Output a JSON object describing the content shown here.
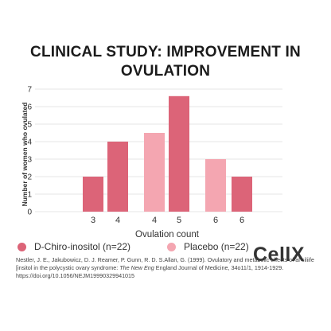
{
  "title_line1": "CLINICAL STUDY: IMPROVEMENT IN",
  "title_line2": "OVULATION",
  "brand": "CellX",
  "legend": [
    {
      "label": "D-Chiro-inositol (n=22)",
      "color": "#dc6478"
    },
    {
      "label": "Placebo (n=22)",
      "color": "#f4a6b1"
    }
  ],
  "reference": {
    "part1": "Nestler, J. E., Jakubowicz, D. J. Reamer, P. Gunn, R. D. S.Allan, G. (1999). Ovulatory and metabolic effects of al ciliife [insitol in the polycystic ovary syndrome: ",
    "journal": "The New Eng",
    "part2": " England Journal of Medicine, 34o11/1, 1914-1929. https://doi.org/10.1056/NEJM19990329941015"
  },
  "chart_data": {
    "type": "bar",
    "title": "CLINICAL STUDY: IMPROVEMENT IN OVULATION",
    "xlabel": "Ovulation count",
    "ylabel": "Number of women who ovulated",
    "ylim": [
      0,
      7
    ],
    "yticks": [
      0,
      1,
      2,
      3,
      4,
      5,
      6,
      7
    ],
    "grid": true,
    "legend_position": "bottom",
    "colors": {
      "D-Chiro-inositol (n=22)": "#dc6478",
      "Placebo (n=22)": "#f4a6b1"
    },
    "bars": [
      {
        "category": "3",
        "series": "D-Chiro-inositol (n=22)",
        "value": 2
      },
      {
        "category": "4",
        "series": "D-Chiro-inositol (n=22)",
        "value": 4
      },
      {
        "category": "4",
        "series": "Placebo (n=22)",
        "value": 4.5
      },
      {
        "category": "5",
        "series": "D-Chiro-inositol (n=22)",
        "value": 6.6
      },
      {
        "category": "6",
        "series": "Placebo (n=22)",
        "value": 3
      },
      {
        "category": "6",
        "series": "D-Chiro-inositol (n=22)",
        "value": 2
      }
    ]
  }
}
